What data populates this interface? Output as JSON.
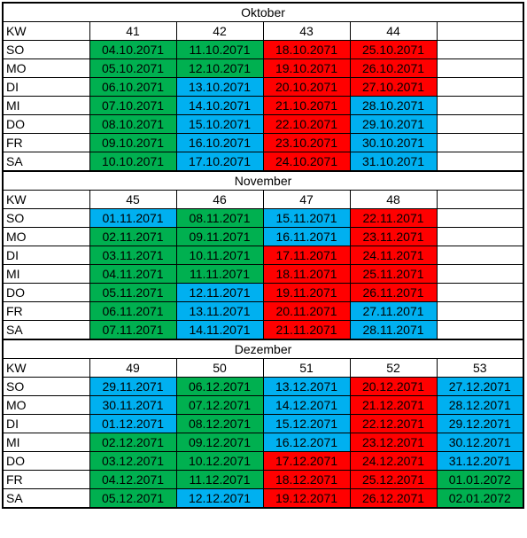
{
  "months": [
    {
      "title": "Oktober",
      "week_label": "KW",
      "weeks": [
        41,
        42,
        43,
        44,
        null
      ],
      "rows": [
        {
          "day": "SO",
          "cells": [
            {
              "text": "04.10.2071",
              "color": "#00b050"
            },
            {
              "text": "11.10.2071",
              "color": "#00b050"
            },
            {
              "text": "18.10.2071",
              "color": "#ff0000"
            },
            {
              "text": "25.10.2071",
              "color": "#ff0000"
            },
            null
          ]
        },
        {
          "day": "MO",
          "cells": [
            {
              "text": "05.10.2071",
              "color": "#00b050"
            },
            {
              "text": "12.10.2071",
              "color": "#00b050"
            },
            {
              "text": "19.10.2071",
              "color": "#ff0000"
            },
            {
              "text": "26.10.2071",
              "color": "#ff0000"
            },
            null
          ]
        },
        {
          "day": "DI",
          "cells": [
            {
              "text": "06.10.2071",
              "color": "#00b050"
            },
            {
              "text": "13.10.2071",
              "color": "#00b0f0"
            },
            {
              "text": "20.10.2071",
              "color": "#ff0000"
            },
            {
              "text": "27.10.2071",
              "color": "#ff0000"
            },
            null
          ]
        },
        {
          "day": "MI",
          "cells": [
            {
              "text": "07.10.2071",
              "color": "#00b050"
            },
            {
              "text": "14.10.2071",
              "color": "#00b0f0"
            },
            {
              "text": "21.10.2071",
              "color": "#ff0000"
            },
            {
              "text": "28.10.2071",
              "color": "#00b0f0"
            },
            null
          ]
        },
        {
          "day": "DO",
          "cells": [
            {
              "text": "08.10.2071",
              "color": "#00b050"
            },
            {
              "text": "15.10.2071",
              "color": "#00b0f0"
            },
            {
              "text": "22.10.2071",
              "color": "#ff0000"
            },
            {
              "text": "29.10.2071",
              "color": "#00b0f0"
            },
            null
          ]
        },
        {
          "day": "FR",
          "cells": [
            {
              "text": "09.10.2071",
              "color": "#00b050"
            },
            {
              "text": "16.10.2071",
              "color": "#00b0f0"
            },
            {
              "text": "23.10.2071",
              "color": "#ff0000"
            },
            {
              "text": "30.10.2071",
              "color": "#00b0f0"
            },
            null
          ]
        },
        {
          "day": "SA",
          "cells": [
            {
              "text": "10.10.2071",
              "color": "#00b050"
            },
            {
              "text": "17.10.2071",
              "color": "#00b0f0"
            },
            {
              "text": "24.10.2071",
              "color": "#ff0000"
            },
            {
              "text": "31.10.2071",
              "color": "#00b0f0"
            },
            null
          ]
        }
      ]
    },
    {
      "title": "November",
      "week_label": "KW",
      "weeks": [
        45,
        46,
        47,
        48,
        null
      ],
      "rows": [
        {
          "day": "SO",
          "cells": [
            {
              "text": "01.11.2071",
              "color": "#00b0f0"
            },
            {
              "text": "08.11.2071",
              "color": "#00b050"
            },
            {
              "text": "15.11.2071",
              "color": "#00b0f0"
            },
            {
              "text": "22.11.2071",
              "color": "#ff0000"
            },
            null
          ]
        },
        {
          "day": "MO",
          "cells": [
            {
              "text": "02.11.2071",
              "color": "#00b050"
            },
            {
              "text": "09.11.2071",
              "color": "#00b050"
            },
            {
              "text": "16.11.2071",
              "color": "#00b0f0"
            },
            {
              "text": "23.11.2071",
              "color": "#ff0000"
            },
            null
          ]
        },
        {
          "day": "DI",
          "cells": [
            {
              "text": "03.11.2071",
              "color": "#00b050"
            },
            {
              "text": "10.11.2071",
              "color": "#00b050"
            },
            {
              "text": "17.11.2071",
              "color": "#ff0000"
            },
            {
              "text": "24.11.2071",
              "color": "#ff0000"
            },
            null
          ]
        },
        {
          "day": "MI",
          "cells": [
            {
              "text": "04.11.2071",
              "color": "#00b050"
            },
            {
              "text": "11.11.2071",
              "color": "#00b050"
            },
            {
              "text": "18.11.2071",
              "color": "#ff0000"
            },
            {
              "text": "25.11.2071",
              "color": "#ff0000"
            },
            null
          ]
        },
        {
          "day": "DO",
          "cells": [
            {
              "text": "05.11.2071",
              "color": "#00b050"
            },
            {
              "text": "12.11.2071",
              "color": "#00b0f0"
            },
            {
              "text": "19.11.2071",
              "color": "#ff0000"
            },
            {
              "text": "26.11.2071",
              "color": "#ff0000"
            },
            null
          ]
        },
        {
          "day": "FR",
          "cells": [
            {
              "text": "06.11.2071",
              "color": "#00b050"
            },
            {
              "text": "13.11.2071",
              "color": "#00b0f0"
            },
            {
              "text": "20.11.2071",
              "color": "#ff0000"
            },
            {
              "text": "27.11.2071",
              "color": "#00b0f0"
            },
            null
          ]
        },
        {
          "day": "SA",
          "cells": [
            {
              "text": "07.11.2071",
              "color": "#00b050"
            },
            {
              "text": "14.11.2071",
              "color": "#00b0f0"
            },
            {
              "text": "21.11.2071",
              "color": "#ff0000"
            },
            {
              "text": "28.11.2071",
              "color": "#00b0f0"
            },
            null
          ]
        }
      ]
    },
    {
      "title": "Dezember",
      "week_label": "KW",
      "weeks": [
        49,
        50,
        51,
        52,
        53
      ],
      "rows": [
        {
          "day": "SO",
          "cells": [
            {
              "text": "29.11.2071",
              "color": "#00b0f0"
            },
            {
              "text": "06.12.2071",
              "color": "#00b050"
            },
            {
              "text": "13.12.2071",
              "color": "#00b0f0"
            },
            {
              "text": "20.12.2071",
              "color": "#ff0000"
            },
            {
              "text": "27.12.2071",
              "color": "#00b0f0"
            }
          ]
        },
        {
          "day": "MO",
          "cells": [
            {
              "text": "30.11.2071",
              "color": "#00b0f0"
            },
            {
              "text": "07.12.2071",
              "color": "#00b050"
            },
            {
              "text": "14.12.2071",
              "color": "#00b0f0"
            },
            {
              "text": "21.12.2071",
              "color": "#ff0000"
            },
            {
              "text": "28.12.2071",
              "color": "#00b0f0"
            }
          ]
        },
        {
          "day": "DI",
          "cells": [
            {
              "text": "01.12.2071",
              "color": "#00b0f0"
            },
            {
              "text": "08.12.2071",
              "color": "#00b050"
            },
            {
              "text": "15.12.2071",
              "color": "#00b0f0"
            },
            {
              "text": "22.12.2071",
              "color": "#ff0000"
            },
            {
              "text": "29.12.2071",
              "color": "#00b0f0"
            }
          ]
        },
        {
          "day": "MI",
          "cells": [
            {
              "text": "02.12.2071",
              "color": "#00b050"
            },
            {
              "text": "09.12.2071",
              "color": "#00b050"
            },
            {
              "text": "16.12.2071",
              "color": "#00b0f0"
            },
            {
              "text": "23.12.2071",
              "color": "#ff0000"
            },
            {
              "text": "30.12.2071",
              "color": "#00b0f0"
            }
          ]
        },
        {
          "day": "DO",
          "cells": [
            {
              "text": "03.12.2071",
              "color": "#00b050"
            },
            {
              "text": "10.12.2071",
              "color": "#00b050"
            },
            {
              "text": "17.12.2071",
              "color": "#ff0000"
            },
            {
              "text": "24.12.2071",
              "color": "#ff0000"
            },
            {
              "text": "31.12.2071",
              "color": "#00b0f0"
            }
          ]
        },
        {
          "day": "FR",
          "cells": [
            {
              "text": "04.12.2071",
              "color": "#00b050"
            },
            {
              "text": "11.12.2071",
              "color": "#00b050"
            },
            {
              "text": "18.12.2071",
              "color": "#ff0000"
            },
            {
              "text": "25.12.2071",
              "color": "#ff0000"
            },
            {
              "text": "01.01.2072",
              "color": "#00b050"
            }
          ]
        },
        {
          "day": "SA",
          "cells": [
            {
              "text": "05.12.2071",
              "color": "#00b050"
            },
            {
              "text": "12.12.2071",
              "color": "#00b0f0"
            },
            {
              "text": "19.12.2071",
              "color": "#ff0000"
            },
            {
              "text": "26.12.2071",
              "color": "#ff0000"
            },
            {
              "text": "02.01.2072",
              "color": "#00b050"
            }
          ]
        }
      ]
    }
  ]
}
